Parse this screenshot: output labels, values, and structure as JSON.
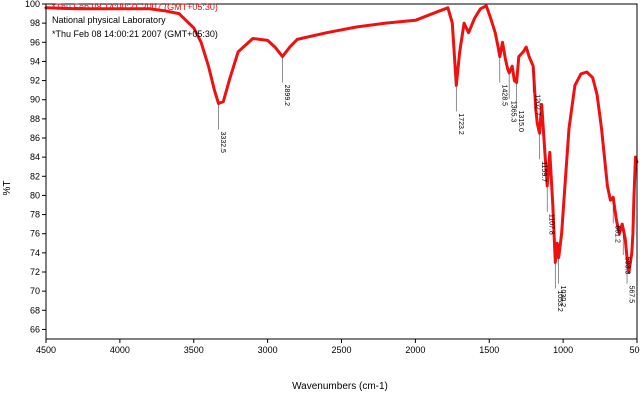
{
  "header": {
    "ghost_line": "*Thu Feb 08 14:00:21 2007 (GMT+05:30)",
    "lab": "National physical Laboratory",
    "timestamp": "*Thu Feb 08 14:00:21 2007 (GMT+05:30)"
  },
  "chart_data": {
    "type": "line",
    "xlabel": "Wavenumbers (cm-1)",
    "ylabel": "%T",
    "xlim": [
      4500,
      500
    ],
    "ylim": [
      65,
      100
    ],
    "x_reversed": true,
    "grid": false,
    "xticks": [
      4500,
      4000,
      3500,
      3000,
      2500,
      2000,
      1500,
      1000,
      500
    ],
    "yticks": [
      66,
      68,
      70,
      72,
      74,
      76,
      78,
      80,
      82,
      84,
      86,
      88,
      90,
      92,
      94,
      96,
      98,
      100
    ],
    "line_color": "#ee1111",
    "series": [
      {
        "x": [
          4500,
          4300,
          4000,
          3800,
          3700,
          3600,
          3500,
          3450,
          3400,
          3360,
          3332.5,
          3300,
          3260,
          3200,
          3100,
          3000,
          2950,
          2899.2,
          2850,
          2800,
          2600,
          2400,
          2200,
          2000,
          1850,
          1780,
          1750,
          1723.2,
          1700,
          1670,
          1640,
          1600,
          1560,
          1520,
          1490,
          1460,
          1440,
          1428.5,
          1410,
          1390,
          1375,
          1365.3,
          1345,
          1330,
          1315.0,
          1300,
          1270,
          1250,
          1230,
          1202.7,
          1185,
          1175,
          1159.7,
          1145,
          1130,
          1107.8,
          1090,
          1070,
          1053.2,
          1040,
          1030.2,
          1010,
          990,
          960,
          920,
          880,
          840,
          800,
          770,
          740,
          700,
          680,
          661.2,
          640,
          620,
          600,
          593.3,
          580,
          567.5,
          555,
          545,
          535,
          528,
          520,
          510,
          502,
          500
        ],
        "y": [
          99.6,
          99.5,
          99.5,
          99.5,
          99.3,
          99.0,
          97.5,
          96.0,
          93.5,
          91.0,
          89.6,
          89.8,
          92.0,
          95.0,
          96.4,
          96.2,
          95.5,
          94.5,
          95.5,
          96.3,
          97.0,
          97.6,
          98.0,
          98.3,
          99.2,
          99.6,
          98.0,
          91.5,
          95.0,
          98.0,
          97.0,
          98.5,
          99.5,
          99.8,
          98.5,
          97.0,
          95.5,
          94.5,
          96.0,
          94.2,
          93.2,
          92.8,
          93.5,
          92.0,
          91.8,
          94.5,
          95.0,
          95.5,
          94.5,
          93.5,
          89.0,
          87.5,
          86.5,
          89.5,
          86.0,
          81.0,
          84.5,
          79.0,
          73.0,
          75.0,
          73.5,
          76.0,
          80.5,
          87.0,
          91.5,
          92.7,
          92.9,
          92.3,
          90.5,
          87.0,
          81.0,
          79.5,
          79.8,
          77.5,
          76.0,
          77.0,
          76.5,
          75.5,
          73.5,
          72.0,
          73.0,
          74.0,
          76.0,
          80.0,
          84.0,
          83.5,
          83.5
        ]
      }
    ],
    "peak_labels": [
      {
        "text": "3332.5",
        "x": 3332.5
      },
      {
        "text": "2899.2",
        "x": 2899.2
      },
      {
        "text": "1723.2",
        "x": 1723.2
      },
      {
        "text": "1428.5",
        "x": 1428.5
      },
      {
        "text": "1365.3",
        "x": 1365.3
      },
      {
        "text": "1315.0",
        "x": 1315.0
      },
      {
        "text": "1202.7",
        "x": 1202.7
      },
      {
        "text": "1159.7",
        "x": 1159.7
      },
      {
        "text": "1107.8",
        "x": 1107.8
      },
      {
        "text": "1053.2",
        "x": 1053.2
      },
      {
        "text": "1030.2",
        "x": 1030.2
      },
      {
        "text": "661.2",
        "x": 661.2
      },
      {
        "text": "593.3",
        "x": 593.3
      },
      {
        "text": "567.5",
        "x": 567.5
      }
    ]
  }
}
